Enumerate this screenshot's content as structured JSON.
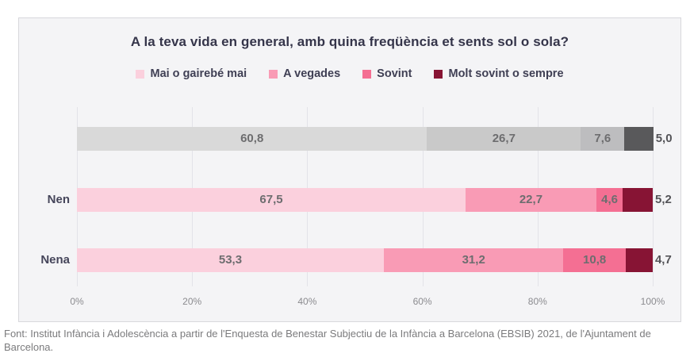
{
  "title": "A la teva vida en general, amb quina freqüència et sents sol o sola?",
  "legend": {
    "items": [
      {
        "label": "Mai o gairebé mai",
        "color": "#fbd0dd"
      },
      {
        "label": "A vegades",
        "color": "#f99bb5"
      },
      {
        "label": "Sovint",
        "color": "#f46f93"
      },
      {
        "label": "Molt sovint o sempre",
        "color": "#871434"
      }
    ]
  },
  "chart_data": {
    "type": "bar",
    "orientation": "horizontal-stacked",
    "title": "A la teva vida en general, amb quina freqüència et sents sol o sola?",
    "categories": [
      "",
      "Nen",
      "Nena"
    ],
    "series": [
      {
        "name": "Mai o gairebé mai",
        "values": [
          60.8,
          67.5,
          53.3
        ]
      },
      {
        "name": "A vegades",
        "values": [
          26.7,
          22.7,
          31.2
        ]
      },
      {
        "name": "Sovint",
        "values": [
          7.6,
          4.6,
          10.8
        ]
      },
      {
        "name": "Molt sovint o sempre",
        "values": [
          5.0,
          5.2,
          4.7
        ]
      }
    ],
    "value_labels": [
      [
        "60,8",
        "26,7",
        "7,6",
        "5,0"
      ],
      [
        "67,5",
        "22,7",
        "4,6",
        "5,2"
      ],
      [
        "53,3",
        "31,2",
        "10,8",
        "4,7"
      ]
    ],
    "x_ticks": [
      "0%",
      "20%",
      "40%",
      "60%",
      "80%",
      "100%"
    ],
    "xlim": [
      0,
      100
    ],
    "grid": true,
    "legend_position": "top",
    "row_palettes": [
      "gray",
      "pink",
      "pink"
    ],
    "palettes": {
      "gray": [
        "#d9d9d9",
        "#c9c9c9",
        "#bdbdbf",
        "#59595b"
      ],
      "pink": [
        "#fbd0dd",
        "#f99bb5",
        "#f46f93",
        "#871434"
      ]
    }
  },
  "source": "Font: Institut Infància i Adolescència a partir de l'Enquesta de Benestar Subjectiu de la Infància a Barcelona (EBSIB) 2021, de l'Ajuntament de Barcelona."
}
